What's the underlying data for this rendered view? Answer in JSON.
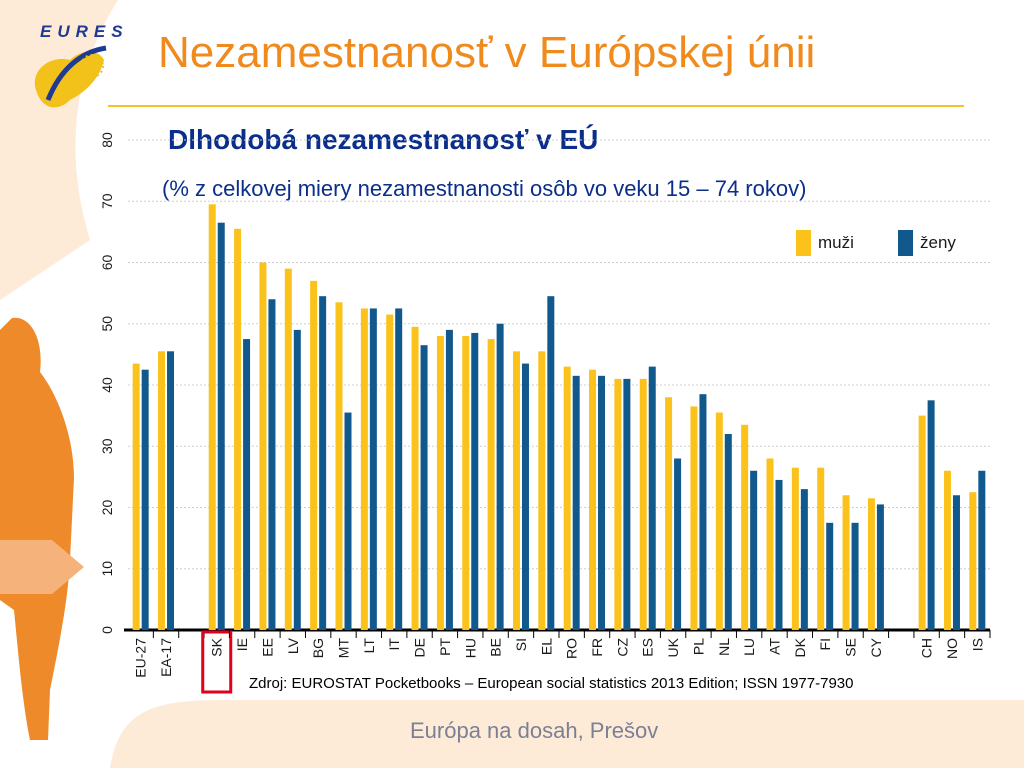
{
  "header": {
    "logo_text": "EURES",
    "title": "Nezamestnanosť v Európskej únii"
  },
  "subtitle": "Dlhodobá nezamestnanosť v EÚ",
  "subtitle2": "(% z celkovej miery nezamestnanosti osôb vo veku 15 – 74 rokov)",
  "legend": {
    "men": "muži",
    "women": "ženy"
  },
  "source": "Zdroj: EUROSTAT Pocketbooks – European social statistics 2013 Edition; ISSN 1977-7930",
  "footer": "Európa na dosah, Prešov",
  "highlighted_category": "SK",
  "colors": {
    "men": "#fbc21b",
    "women": "#11588c",
    "title": "#f08a1c",
    "subtitle": "#0a2e8a",
    "highlight": "#e3001b",
    "decor": "#f3a35c"
  },
  "chart_data": {
    "type": "bar",
    "title": "",
    "xlabel": "",
    "ylabel": "",
    "ylim": [
      0,
      80
    ],
    "yticks": [
      0,
      10,
      20,
      30,
      40,
      50,
      60,
      70,
      80
    ],
    "grid": true,
    "legend_position": "top-right",
    "categories": [
      "EU-27",
      "EA-17",
      "",
      "SK",
      "IE",
      "EE",
      "LV",
      "BG",
      "MT",
      "LT",
      "IT",
      "DE",
      "PT",
      "HU",
      "BE",
      "SI",
      "EL",
      "RO",
      "FR",
      "CZ",
      "ES",
      "UK",
      "PL",
      "NL",
      "LU",
      "AT",
      "DK",
      "FI",
      "SE",
      "CY",
      "",
      "CH",
      "NO",
      "IS"
    ],
    "series": [
      {
        "name": "muži",
        "color": "#fbc21b",
        "values": [
          43.5,
          45.5,
          null,
          69.5,
          65.5,
          60,
          59,
          57,
          53.5,
          52.5,
          51.5,
          49.5,
          48,
          48,
          47.5,
          45.5,
          45.5,
          43,
          42.5,
          41,
          41,
          38,
          36.5,
          35.5,
          33.5,
          28,
          26.5,
          26.5,
          22,
          21.5,
          null,
          35,
          26,
          22.5
        ]
      },
      {
        "name": "ženy",
        "color": "#11588c",
        "values": [
          42.5,
          45.5,
          null,
          66.5,
          47.5,
          54,
          49,
          54.5,
          35.5,
          52.5,
          52.5,
          46.5,
          49,
          48.5,
          50,
          43.5,
          54.5,
          41.5,
          41.5,
          41,
          43,
          28,
          38.5,
          32,
          26,
          24.5,
          23,
          17.5,
          17.5,
          20.5,
          null,
          37.5,
          22,
          26
        ]
      }
    ]
  }
}
